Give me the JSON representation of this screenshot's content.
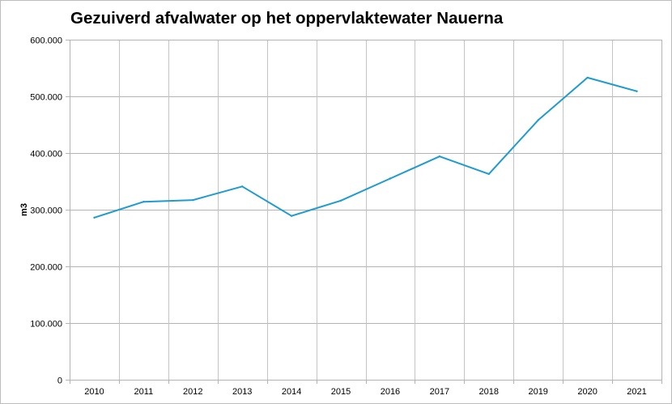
{
  "chart_data": {
    "type": "line",
    "title": "Gezuiverd afvalwater op het oppervlaktewater Nauerna",
    "xlabel": "",
    "ylabel": "m3",
    "ylim": [
      0,
      600000
    ],
    "yticks": [
      {
        "value": 0,
        "label": "0"
      },
      {
        "value": 100000,
        "label": "100.000"
      },
      {
        "value": 200000,
        "label": "200.000"
      },
      {
        "value": 300000,
        "label": "300.000"
      },
      {
        "value": 400000,
        "label": "400.000"
      },
      {
        "value": 500000,
        "label": "500.000"
      },
      {
        "value": 600000,
        "label": "600.000"
      }
    ],
    "categories": [
      "2010",
      "2011",
      "2012",
      "2013",
      "2014",
      "2015",
      "2016",
      "2017",
      "2018",
      "2019",
      "2020",
      "2021"
    ],
    "series": [
      {
        "values": [
          286000,
          314000,
          317000,
          341000,
          289000,
          316000,
          355000,
          394000,
          363000,
          458000,
          533000,
          509000
        ],
        "color": "#1f9bcf"
      }
    ],
    "grid": true,
    "legend": "none"
  }
}
